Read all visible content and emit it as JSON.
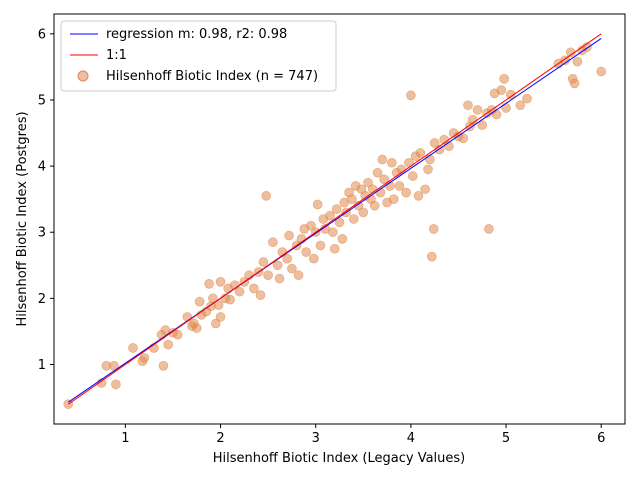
{
  "chart_data": {
    "type": "scatter",
    "xlabel": "Hilsenhoff Biotic Index (Legacy Values)",
    "ylabel": "Hilsenhoff Biotic Index (Postgres)",
    "xlim": [
      0.25,
      6.25
    ],
    "ylim": [
      0.1,
      6.3
    ],
    "x_ticks": [
      1,
      2,
      3,
      4,
      5,
      6
    ],
    "y_ticks": [
      1,
      2,
      3,
      4,
      5,
      6
    ],
    "grid": false,
    "legend_position": "top-left",
    "colors": {
      "regression": "#0000ff",
      "identity": "#ff0000",
      "points": "#e08a4f"
    },
    "series": [
      {
        "name": "regression m: 0.98, r2: 0.98",
        "kind": "line",
        "x": [
          0.4,
          6.0
        ],
        "y": [
          0.43,
          5.93
        ]
      },
      {
        "name": "1:1",
        "kind": "line",
        "x": [
          0.4,
          6.0
        ],
        "y": [
          0.4,
          6.0
        ]
      },
      {
        "name": "Hilsenhoff Biotic Index (n = 747)",
        "kind": "scatter",
        "points": [
          [
            0.4,
            0.4
          ],
          [
            0.75,
            0.72
          ],
          [
            0.8,
            0.98
          ],
          [
            0.88,
            0.98
          ],
          [
            0.9,
            0.7
          ],
          [
            1.08,
            1.25
          ],
          [
            1.18,
            1.05
          ],
          [
            1.2,
            1.1
          ],
          [
            1.3,
            1.25
          ],
          [
            1.38,
            1.45
          ],
          [
            1.4,
            0.98
          ],
          [
            1.42,
            1.52
          ],
          [
            1.45,
            1.3
          ],
          [
            1.5,
            1.48
          ],
          [
            1.55,
            1.45
          ],
          [
            1.65,
            1.72
          ],
          [
            1.7,
            1.58
          ],
          [
            1.72,
            1.62
          ],
          [
            1.75,
            1.55
          ],
          [
            1.78,
            1.95
          ],
          [
            1.8,
            1.75
          ],
          [
            1.85,
            1.8
          ],
          [
            1.88,
            2.22
          ],
          [
            1.9,
            1.88
          ],
          [
            1.92,
            2.0
          ],
          [
            1.95,
            1.62
          ],
          [
            1.98,
            1.9
          ],
          [
            2.0,
            2.25
          ],
          [
            2.0,
            1.72
          ],
          [
            2.05,
            2.0
          ],
          [
            2.08,
            2.15
          ],
          [
            2.1,
            1.98
          ],
          [
            2.15,
            2.2
          ],
          [
            2.2,
            2.1
          ],
          [
            2.25,
            2.25
          ],
          [
            2.3,
            2.35
          ],
          [
            2.35,
            2.15
          ],
          [
            2.4,
            2.4
          ],
          [
            2.42,
            2.05
          ],
          [
            2.45,
            2.55
          ],
          [
            2.48,
            3.55
          ],
          [
            2.5,
            2.35
          ],
          [
            2.55,
            2.85
          ],
          [
            2.6,
            2.5
          ],
          [
            2.62,
            2.3
          ],
          [
            2.65,
            2.7
          ],
          [
            2.7,
            2.6
          ],
          [
            2.72,
            2.95
          ],
          [
            2.75,
            2.45
          ],
          [
            2.8,
            2.8
          ],
          [
            2.82,
            2.35
          ],
          [
            2.85,
            2.9
          ],
          [
            2.88,
            3.05
          ],
          [
            2.9,
            2.7
          ],
          [
            2.95,
            3.1
          ],
          [
            2.98,
            2.6
          ],
          [
            3.0,
            3.0
          ],
          [
            3.02,
            3.42
          ],
          [
            3.05,
            2.8
          ],
          [
            3.08,
            3.2
          ],
          [
            3.1,
            3.05
          ],
          [
            3.15,
            3.25
          ],
          [
            3.18,
            3.0
          ],
          [
            3.2,
            2.75
          ],
          [
            3.22,
            3.35
          ],
          [
            3.25,
            3.15
          ],
          [
            3.28,
            2.9
          ],
          [
            3.3,
            3.45
          ],
          [
            3.32,
            3.3
          ],
          [
            3.35,
            3.6
          ],
          [
            3.38,
            3.5
          ],
          [
            3.4,
            3.2
          ],
          [
            3.42,
            3.7
          ],
          [
            3.45,
            3.4
          ],
          [
            3.48,
            3.65
          ],
          [
            3.5,
            3.3
          ],
          [
            3.52,
            3.55
          ],
          [
            3.55,
            3.75
          ],
          [
            3.58,
            3.5
          ],
          [
            3.6,
            3.65
          ],
          [
            3.62,
            3.4
          ],
          [
            3.65,
            3.9
          ],
          [
            3.68,
            3.6
          ],
          [
            3.7,
            4.1
          ],
          [
            3.72,
            3.8
          ],
          [
            3.75,
            3.45
          ],
          [
            3.78,
            3.7
          ],
          [
            3.8,
            4.05
          ],
          [
            3.82,
            3.5
          ],
          [
            3.85,
            3.9
          ],
          [
            3.88,
            3.7
          ],
          [
            3.9,
            3.95
          ],
          [
            3.95,
            3.6
          ],
          [
            3.98,
            4.05
          ],
          [
            4.0,
            5.07
          ],
          [
            4.02,
            3.85
          ],
          [
            4.05,
            4.15
          ],
          [
            4.08,
            3.55
          ],
          [
            4.1,
            4.2
          ],
          [
            4.15,
            3.65
          ],
          [
            4.18,
            3.95
          ],
          [
            4.2,
            4.1
          ],
          [
            4.22,
            2.63
          ],
          [
            4.24,
            3.05
          ],
          [
            4.25,
            4.35
          ],
          [
            4.3,
            4.25
          ],
          [
            4.35,
            4.4
          ],
          [
            4.4,
            4.3
          ],
          [
            4.45,
            4.5
          ],
          [
            4.5,
            4.45
          ],
          [
            4.55,
            4.42
          ],
          [
            4.6,
            4.92
          ],
          [
            4.62,
            4.6
          ],
          [
            4.65,
            4.7
          ],
          [
            4.7,
            4.85
          ],
          [
            4.75,
            4.62
          ],
          [
            4.8,
            4.8
          ],
          [
            4.82,
            3.05
          ],
          [
            4.85,
            4.85
          ],
          [
            4.88,
            5.1
          ],
          [
            4.9,
            4.78
          ],
          [
            4.95,
            5.15
          ],
          [
            4.98,
            5.32
          ],
          [
            5.0,
            4.88
          ],
          [
            5.05,
            5.08
          ],
          [
            5.15,
            4.92
          ],
          [
            5.22,
            5.02
          ],
          [
            5.55,
            5.55
          ],
          [
            5.62,
            5.6
          ],
          [
            5.68,
            5.72
          ],
          [
            5.7,
            5.32
          ],
          [
            5.72,
            5.25
          ],
          [
            5.75,
            5.58
          ],
          [
            5.8,
            5.75
          ],
          [
            5.85,
            5.8
          ],
          [
            6.0,
            5.43
          ]
        ]
      }
    ]
  }
}
